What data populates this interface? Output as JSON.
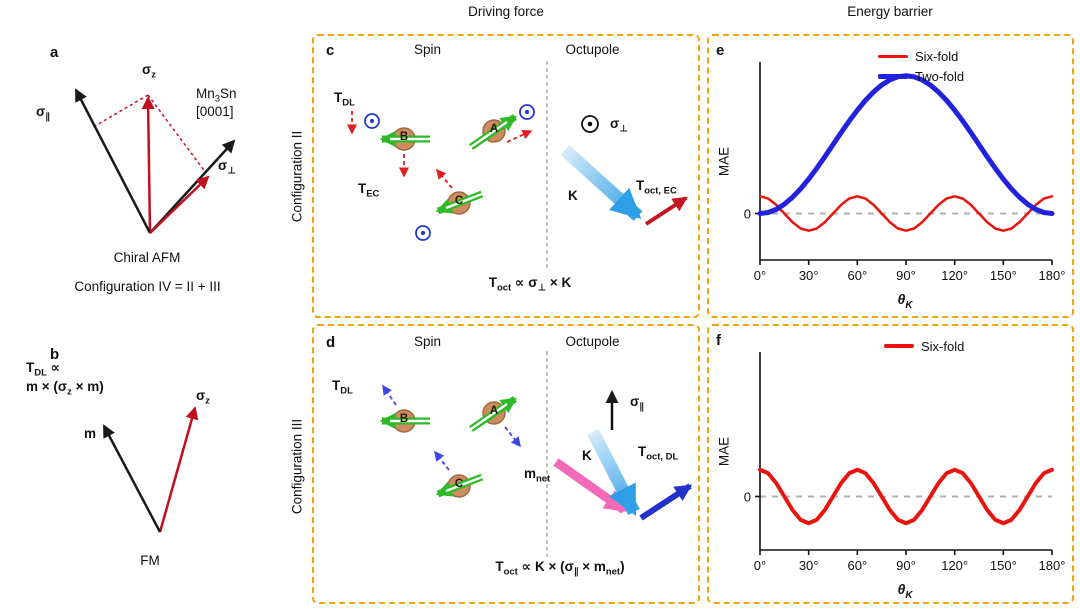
{
  "colors": {
    "accent_orange": "#f5a20b",
    "sixfold_red": "#e8150f",
    "twofold_blue": "#2222dd",
    "spin_green": "#2db928",
    "atom_brown": "#cf8d5f",
    "k_blue": "#2e9fe6",
    "mnet_pink": "#f26ab8",
    "toct_navy": "#2233cc"
  },
  "headers": {
    "driving_force": "Driving force",
    "energy_barrier": "Energy barrier"
  },
  "row_labels": {
    "config2": "Configuration II",
    "config3": "Configuration III"
  },
  "panel_a": {
    "letter": "a",
    "sigma_z": "σ_{z}",
    "sigma_par": "σ_{∥}",
    "sigma_perp": "σ_{⊥}",
    "crystal_line1": "Mn_{3}Sn",
    "crystal_line2": "[0001]",
    "caption1": "Chiral AFM",
    "caption2": "Configuration IV = II + III"
  },
  "panel_b": {
    "letter": "b",
    "formula_line1": "T_{DL} ∝",
    "formula_line2": "m × (σ_{z} × m)",
    "sigma_z": "σ_{z}",
    "m": "m",
    "caption": "FM"
  },
  "panel_c": {
    "letter": "c",
    "spin_title": "Spin",
    "octupole_title": "Octupole",
    "t_dl": "T_{DL}",
    "t_ec": "T_{EC}",
    "atoms": {
      "a": "A",
      "b": "B",
      "c": "C"
    },
    "sigma_perp": "σ_{⊥}",
    "k": "K",
    "t_oct_ec": "T_{oct, EC}",
    "formula": "T_{oct} ∝ σ_{⊥} × K"
  },
  "panel_d": {
    "letter": "d",
    "spin_title": "Spin",
    "octupole_title": "Octupole",
    "t_dl": "T_{DL}",
    "atoms": {
      "a": "A",
      "b": "B",
      "c": "C"
    },
    "sigma_par": "σ_{∥}",
    "k": "K",
    "m_net": "m_{net}",
    "t_oct_dl": "T_{oct, DL}",
    "formula": "T_{oct} ∝ K × (σ_{∥} × m_{net})"
  },
  "panel_e": {
    "letter": "e",
    "ylabel": "MAE",
    "xlabel": "θ_{K}",
    "legend": [
      {
        "label": "Six-fold",
        "color": "#e8150f"
      },
      {
        "label": "Two-fold",
        "color": "#2222dd"
      }
    ]
  },
  "panel_f": {
    "letter": "f",
    "ylabel": "MAE",
    "xlabel": "θ_{K}",
    "legend": [
      {
        "label": "Six-fold",
        "color": "#e8150f"
      }
    ]
  },
  "chart_data": [
    {
      "id": "e",
      "type": "line",
      "title": "",
      "xlabel": "θK",
      "ylabel": "MAE",
      "xlim": [
        0,
        180
      ],
      "ylim": [
        -2.7,
        8.8
      ],
      "x_ticks": [
        0,
        30,
        60,
        90,
        120,
        150,
        180
      ],
      "x_tick_labels": [
        "0°",
        "30°",
        "60°",
        "90°",
        "120°",
        "150°",
        "180°"
      ],
      "y_zero_label": "0",
      "zero_line_dashed": true,
      "legend_position": "top-right",
      "x": [
        0,
        5,
        10,
        15,
        20,
        25,
        30,
        35,
        40,
        45,
        50,
        55,
        60,
        65,
        70,
        75,
        80,
        85,
        90,
        95,
        100,
        105,
        110,
        115,
        120,
        125,
        130,
        135,
        140,
        145,
        150,
        155,
        160,
        165,
        170,
        175,
        180
      ],
      "series": [
        {
          "name": "Six-fold",
          "color": "#e8150f",
          "width": 2.5,
          "values": [
            1,
            0.87,
            0.5,
            0,
            -0.5,
            -0.87,
            -1,
            -0.87,
            -0.5,
            0,
            0.5,
            0.87,
            1,
            0.87,
            0.5,
            0,
            -0.5,
            -0.87,
            -1,
            -0.87,
            -0.5,
            0,
            0.5,
            0.87,
            1,
            0.87,
            0.5,
            0,
            -0.5,
            -0.87,
            -1,
            -0.87,
            -0.5,
            0,
            0.5,
            0.87,
            1
          ]
        },
        {
          "name": "Two-fold",
          "color": "#2222dd",
          "width": 5,
          "values": [
            0,
            0.06,
            0.24,
            0.54,
            0.94,
            1.43,
            2,
            2.63,
            3.3,
            4,
            4.7,
            5.37,
            6,
            6.57,
            7.06,
            7.46,
            7.76,
            7.94,
            8,
            7.94,
            7.76,
            7.46,
            7.06,
            6.57,
            6,
            5.37,
            4.7,
            4,
            3.3,
            2.63,
            2,
            1.43,
            0.94,
            0.54,
            0.24,
            0.06,
            0
          ]
        }
      ]
    },
    {
      "id": "f",
      "type": "line",
      "title": "",
      "xlabel": "θK",
      "ylabel": "MAE",
      "xlim": [
        0,
        180
      ],
      "ylim": [
        -2,
        5.4
      ],
      "x_ticks": [
        0,
        30,
        60,
        90,
        120,
        150,
        180
      ],
      "x_tick_labels": [
        "0°",
        "30°",
        "60°",
        "90°",
        "120°",
        "150°",
        "180°"
      ],
      "y_zero_label": "0",
      "zero_line_dashed": true,
      "legend_position": "top-center",
      "x": [
        0,
        5,
        10,
        15,
        20,
        25,
        30,
        35,
        40,
        45,
        50,
        55,
        60,
        65,
        70,
        75,
        80,
        85,
        90,
        95,
        100,
        105,
        110,
        115,
        120,
        125,
        130,
        135,
        140,
        145,
        150,
        155,
        160,
        165,
        170,
        175,
        180
      ],
      "series": [
        {
          "name": "Six-fold",
          "color": "#e8150f",
          "width": 4,
          "values": [
            1,
            0.87,
            0.5,
            0,
            -0.5,
            -0.87,
            -1,
            -0.87,
            -0.5,
            0,
            0.5,
            0.87,
            1,
            0.87,
            0.5,
            0,
            -0.5,
            -0.87,
            -1,
            -0.87,
            -0.5,
            0,
            0.5,
            0.87,
            1,
            0.87,
            0.5,
            0,
            -0.5,
            -0.87,
            -1,
            -0.87,
            -0.5,
            0,
            0.5,
            0.87,
            1
          ]
        }
      ]
    }
  ]
}
